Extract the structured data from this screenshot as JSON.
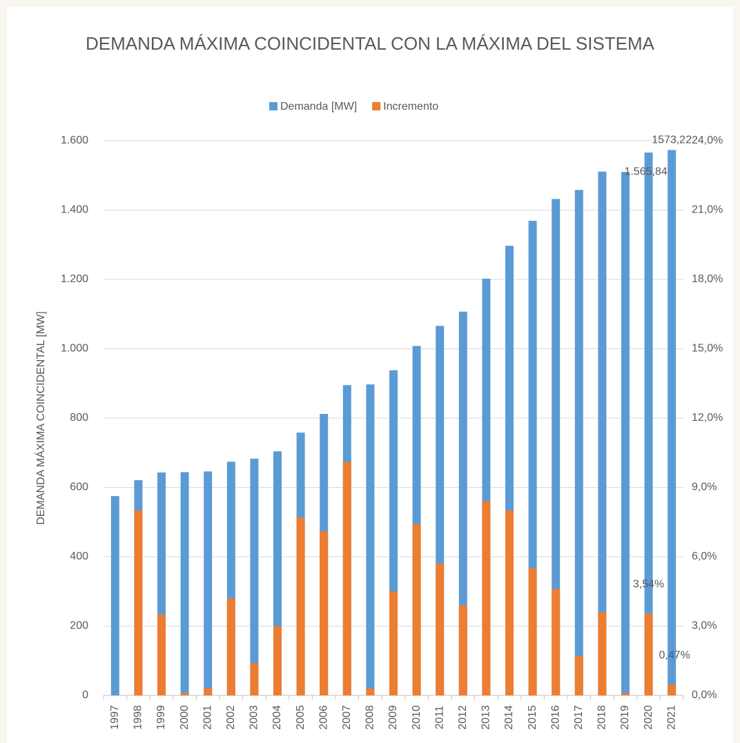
{
  "chart_data": {
    "type": "bar",
    "title": "DEMANDA MÁXIMA COINCIDENTAL CON LA MÁXIMA DEL SISTEMA",
    "y_label": "DEMANDA MÁXIMA COINCIDENTAL [MW]",
    "categories": [
      "1997",
      "1998",
      "1999",
      "2000",
      "2001",
      "2002",
      "2003",
      "2004",
      "2005",
      "2006",
      "2007",
      "2008",
      "2009",
      "2010",
      "2011",
      "2012",
      "2013",
      "2014",
      "2015",
      "2016",
      "2017",
      "2018",
      "2019",
      "2020",
      "2021"
    ],
    "series": [
      {
        "name": "Demanda [MW]",
        "color": "#5b9bd5",
        "values": [
          575,
          621,
          643,
          644,
          646,
          674,
          683,
          704,
          758,
          812,
          895,
          897,
          938,
          1008,
          1066,
          1107,
          1202,
          1297,
          1369,
          1432,
          1458,
          1511,
          1510,
          1565.84,
          1573.22
        ],
        "value_labels": [
          null,
          null,
          null,
          null,
          null,
          null,
          null,
          null,
          null,
          null,
          null,
          null,
          null,
          null,
          null,
          null,
          null,
          null,
          null,
          null,
          null,
          null,
          null,
          "1.565,84",
          "1573,22"
        ]
      },
      {
        "name": "Incremento",
        "color": "#ed7d31",
        "axis": "y2",
        "values": [
          null,
          8.0,
          3.5,
          0.1,
          0.3,
          4.2,
          1.4,
          3.0,
          7.7,
          7.1,
          10.1,
          0.3,
          4.5,
          7.4,
          5.7,
          3.9,
          8.4,
          8.0,
          5.5,
          4.6,
          1.7,
          3.6,
          0.1,
          3.54,
          0.47
        ],
        "value_labels": [
          null,
          null,
          null,
          null,
          null,
          null,
          null,
          null,
          null,
          null,
          null,
          null,
          null,
          null,
          null,
          null,
          null,
          null,
          null,
          null,
          null,
          null,
          null,
          "3,54%",
          "0,47%"
        ]
      }
    ],
    "ylim": [
      0,
      1600
    ],
    "yticks": [
      0,
      200,
      400,
      600,
      800,
      {
        "value": 1000,
        "label": "1.000"
      },
      {
        "value": 1200,
        "label": "1.200"
      },
      {
        "value": 1400,
        "label": "1.400"
      },
      {
        "value": 1600,
        "label": "1.600"
      }
    ],
    "y2lim": [
      0,
      24
    ],
    "y2ticks": [
      {
        "value": 0,
        "label": "0,0%"
      },
      {
        "value": 3,
        "label": "3,0%"
      },
      {
        "value": 6,
        "label": "6,0%"
      },
      {
        "value": 9,
        "label": "9,0%"
      },
      {
        "value": 12,
        "label": "12,0%"
      },
      {
        "value": 15,
        "label": "15,0%"
      },
      {
        "value": 18,
        "label": "18,0%"
      },
      {
        "value": 21,
        "label": "21,0%"
      },
      {
        "value": 24,
        "label": "24,0%"
      }
    ],
    "grid": true,
    "legend": "top"
  }
}
